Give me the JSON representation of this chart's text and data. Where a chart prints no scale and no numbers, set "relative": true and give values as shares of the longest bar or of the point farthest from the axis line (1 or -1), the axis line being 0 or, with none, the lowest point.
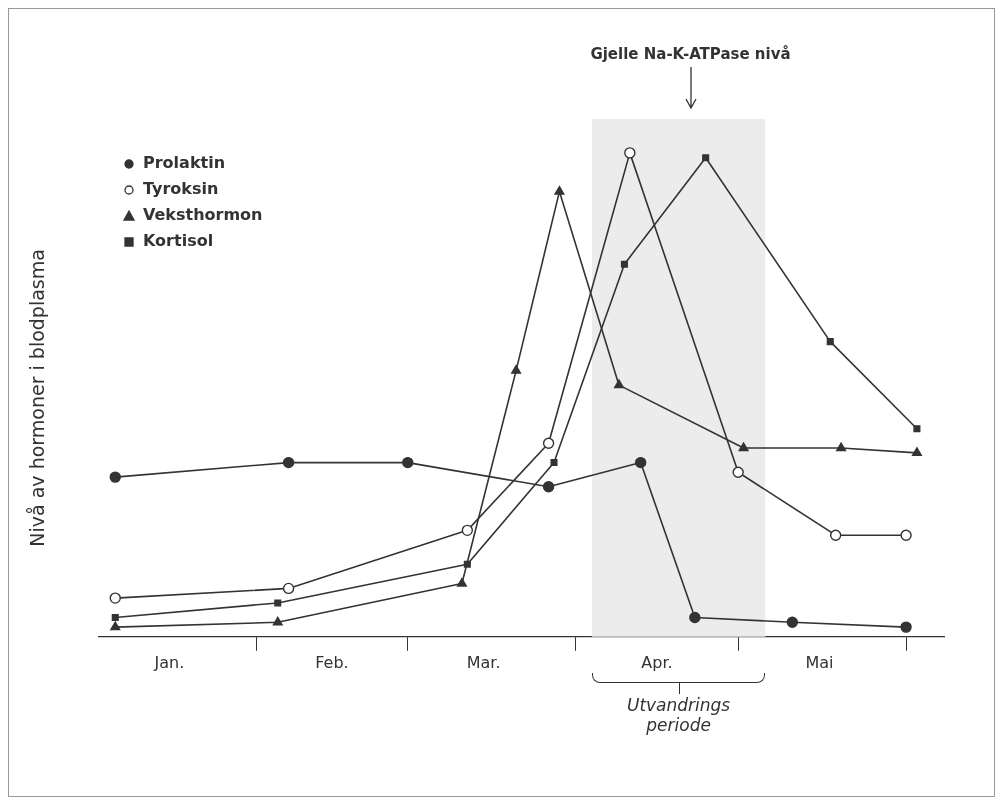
{
  "chart_data": {
    "type": "line",
    "relative": true,
    "ylabel": "Nivå av hormoner i blodplasma",
    "legend": "top left",
    "marker": "circle",
    "line_style": "solid",
    "grid": false,
    "xlim": [
      "--01-03",
      "--06-08"
    ],
    "xticks": [
      {
        "value": "--01-16",
        "label": "Jan."
      },
      {
        "value": "--02-01",
        "label": null
      },
      {
        "value": "--02-15",
        "label": "Feb."
      },
      {
        "value": "--03-01",
        "label": null
      },
      {
        "value": "--03-15",
        "label": "Mar."
      },
      {
        "value": "--04-01",
        "label": null
      },
      {
        "value": "--04-16",
        "label": "Apr."
      },
      {
        "value": "--05-01",
        "label": null
      },
      {
        "value": "--05-16",
        "label": "Mai"
      },
      {
        "value": "--06-01",
        "label": null
      }
    ],
    "series": [
      {
        "name": "Prolaktin",
        "color": "#333333",
        "x": [
          "--01-06",
          "--02-07",
          "--03-01",
          "--03-27",
          "--04-13",
          "--04-23",
          "--05-11",
          "--06-01"
        ],
        "values": [
          0.33,
          0.36,
          0.36,
          0.31,
          0.36,
          0.04,
          0.03,
          0.02
        ]
      },
      {
        "name": "Tyroksin",
        "color": "#333333",
        "x": [
          "--01-06",
          "--02-07",
          "--03-12",
          "--03-27",
          "--04-11",
          "--05-01",
          "--05-19",
          "--06-01"
        ],
        "values": [
          0.08,
          0.1,
          0.22,
          0.4,
          1,
          0.34,
          0.21,
          0.21
        ]
      },
      {
        "name": "Veksthormon",
        "color": "#333333",
        "marker": "triangle",
        "x": [
          "--01-06",
          "--02-05",
          "--03-11",
          "--03-21",
          "--03-29",
          "--04-09",
          "--05-02",
          "--05-20",
          "--06-03"
        ],
        "values": [
          0.02,
          0.03,
          0.11,
          0.55,
          0.92,
          0.52,
          0.39,
          0.39,
          0.38
        ]
      },
      {
        "name": "Kortisol",
        "color": "#333333",
        "marker": "square",
        "x": [
          "--01-06",
          "--02-05",
          "--03-12",
          "--03-28",
          "--04-10",
          "--04-25",
          "--05-18",
          "--06-03"
        ],
        "values": [
          0.04,
          0.07,
          0.15,
          0.36,
          0.77,
          0.99,
          0.61,
          0.43
        ]
      }
    ],
    "annotations": [
      "Gjelle Na-K-ATPase nivå",
      "Utvandrings periode"
    ],
    "bands": [
      {
        "axis": "x",
        "from": "--04-04",
        "to": "--05-06",
        "color": "#ececec"
      }
    ]
  }
}
